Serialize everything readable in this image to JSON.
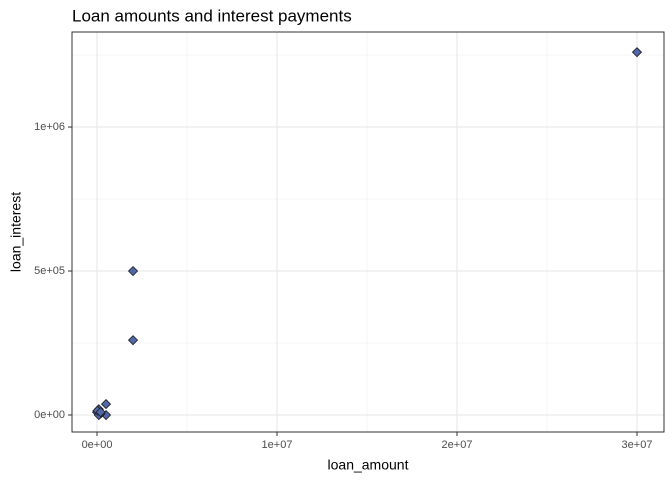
{
  "chart_data": {
    "type": "scatter",
    "title": "Loan amounts and interest payments",
    "x_label": "loan_amount",
    "y_label": "loan_interest",
    "x": [
      30000000,
      2000000,
      2000000,
      500000,
      500000,
      0,
      100000,
      200000,
      100000,
      30000,
      200000
    ],
    "values": [
      1260000,
      500000,
      260000,
      38000,
      0,
      10000,
      20000,
      5000,
      0,
      15000,
      10000
    ],
    "color": "#5068a8",
    "edge_color": "#1a1a1a",
    "marker": "diamond",
    "xlim": [
      -1390000,
      31500000
    ],
    "ylim": [
      -59000,
      1330000
    ],
    "xticks": [
      {
        "value": 0,
        "label": "0e+00"
      },
      {
        "value": 10000000,
        "label": "1e+07"
      },
      {
        "value": 20000000,
        "label": "2e+07"
      },
      {
        "value": 30000000,
        "label": "3e+07"
      }
    ],
    "yticks": [
      {
        "value": 0,
        "label": "0e+00"
      },
      {
        "value": 500000,
        "label": "5e+05"
      },
      {
        "value": 1000000,
        "label": "1e+06"
      }
    ],
    "x_minor_ticks": [
      5000000,
      15000000,
      25000000
    ],
    "y_minor_ticks": [
      250000,
      750000,
      1250000
    ],
    "grid": true
  }
}
